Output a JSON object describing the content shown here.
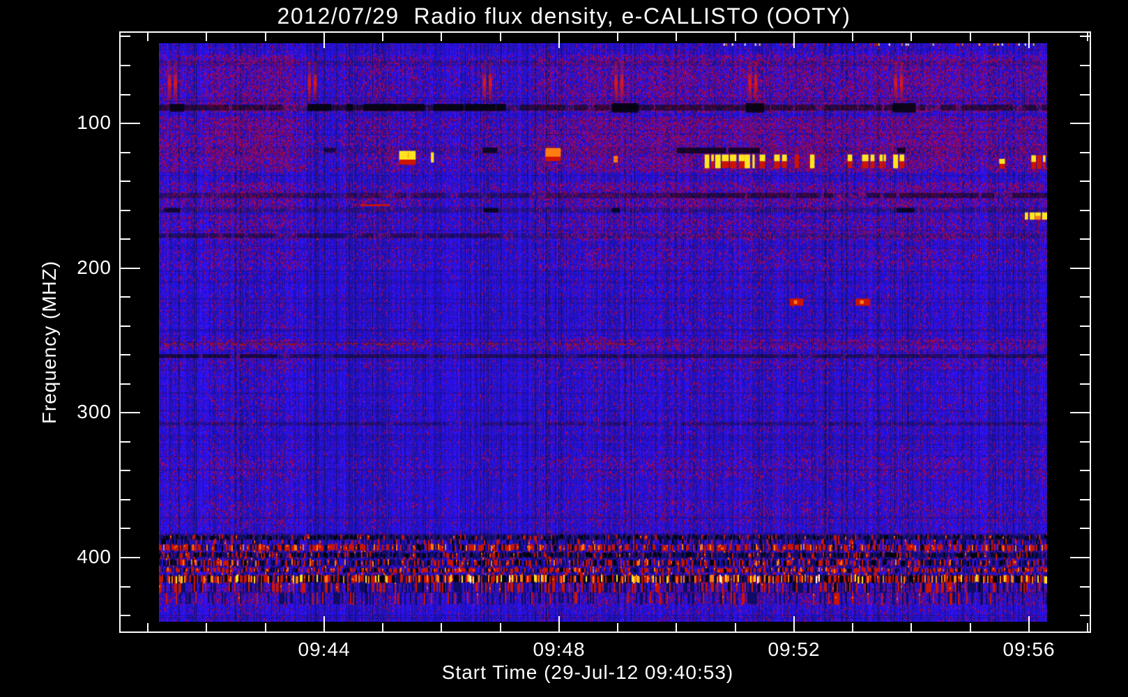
{
  "page": {
    "background": "#000000",
    "text_color": "#ffffff"
  },
  "chart_data": {
    "type": "heatmap",
    "title": "2012/07/29  Radio flux density, e-CALLISTO (OOTY)",
    "xlabel": "Start Time (29-Jul-12 09:40:53)",
    "ylabel": "Frequency (MHZ)",
    "x_axis": {
      "unit": "minutes after 09:00 UT",
      "image_range_min": [
        41.19,
        56.31
      ],
      "frame_range_min": [
        40.47,
        57.05
      ],
      "major_ticks": [
        {
          "value": 44,
          "label": "09:44"
        },
        {
          "value": 48,
          "label": "09:48"
        },
        {
          "value": 52,
          "label": "09:52"
        },
        {
          "value": 56,
          "label": "09:56"
        }
      ],
      "minor_tick_step": 1
    },
    "y_axis": {
      "unit": "MHz",
      "image_range_mhz": [
        44.6,
        444.3
      ],
      "frame_range_mhz": [
        36.4,
        452.0
      ],
      "major_ticks": [
        {
          "value": 100,
          "label": "100"
        },
        {
          "value": 200,
          "label": "200"
        },
        {
          "value": 300,
          "label": "300"
        },
        {
          "value": 400,
          "label": "400"
        }
      ],
      "minor_tick_step": 20,
      "direction": "increasing-downward"
    },
    "palette": {
      "blue": "#2a22dd",
      "dkblue": "#0e0c66",
      "black": "#02030f",
      "red": "#cc1404",
      "darkred": "#9e1a10",
      "maroon": "#7d1536",
      "orange": "#ff7d12",
      "yellow": "#ffe51e",
      "white": "#ffffff"
    },
    "texture": {
      "base_speckle": 0.022,
      "dark_speck_prob": 0.07,
      "dark_col_prob": 0.06,
      "bright_col_prob": 0.04
    },
    "speckle_bands": [
      {
        "f": [
          52,
          92
        ],
        "d": 0.1
      },
      {
        "f": [
          95,
          133
        ],
        "d": 0.13
      },
      {
        "f": [
          140,
          158
        ],
        "d": 0.1
      },
      {
        "f": [
          163,
          180
        ],
        "d": 0.07
      },
      {
        "f": [
          185,
          200
        ],
        "d": 0.05
      },
      {
        "f": [
          248,
          256
        ],
        "d": 0.09
      },
      {
        "f": [
          262,
          270
        ],
        "d": 0.05
      },
      {
        "f": [
          330,
          345
        ],
        "d": 0.05
      },
      {
        "f": [
          360,
          376
        ],
        "d": 0.04
      },
      {
        "f": [
          418,
          432
        ],
        "d": 0.06
      }
    ],
    "row_shade_bands": [
      {
        "f": [
          56.5,
          58.5
        ],
        "k": 0.75
      },
      {
        "f": [
          87,
          91
        ],
        "k": 0.55
      },
      {
        "f": [
          116.5,
          121
        ],
        "k": 0.8
      },
      {
        "f": [
          148,
          151.5
        ],
        "k": 0.7
      },
      {
        "f": [
          158.5,
          161.5
        ],
        "k": 0.7
      },
      {
        "f": [
          176,
          179
        ],
        "k": 0.75
      },
      {
        "f": [
          259,
          262
        ],
        "k": 0.65
      },
      {
        "f": [
          306,
          309
        ],
        "k": 0.8
      },
      {
        "f": [
          384,
          387.5
        ],
        "k": 0.6
      },
      {
        "f": [
          396.5,
          400
        ],
        "k": 0.65
      },
      {
        "f": [
          412,
          417
        ],
        "k": 0.6
      }
    ],
    "dark_lines": [
      {
        "f": [
          87,
          91
        ],
        "t": [
          41.19,
          56.31
        ],
        "a": 0.45
      },
      {
        "f": [
          86.5,
          91.5
        ],
        "t": [
          43.72,
          47.1
        ],
        "a": 0.8
      },
      {
        "f": [
          86.5,
          92
        ],
        "t": [
          41.3,
          41.62
        ],
        "a": 0.8
      },
      {
        "f": [
          86,
          92.5
        ],
        "t": [
          48.9,
          49.35
        ],
        "a": 0.85
      },
      {
        "f": [
          86,
          92.5
        ],
        "t": [
          51.18,
          51.55
        ],
        "a": 0.85
      },
      {
        "f": [
          86,
          92.5
        ],
        "t": [
          53.68,
          54.1
        ],
        "a": 0.85
      },
      {
        "f": [
          116.8,
          120.5
        ],
        "t": [
          46.7,
          46.95
        ],
        "a": 0.8
      },
      {
        "f": [
          116.8,
          120.7
        ],
        "t": [
          49.85,
          51.42
        ],
        "a": 0.75
      },
      {
        "f": [
          116.8,
          120.5
        ],
        "t": [
          53.62,
          53.9
        ],
        "a": 0.8
      },
      {
        "f": [
          117,
          120
        ],
        "t": [
          44.0,
          44.2
        ],
        "a": 0.6
      },
      {
        "f": [
          148,
          151.5
        ],
        "t": [
          41.19,
          49.9
        ],
        "a": 0.25
      },
      {
        "f": [
          148,
          151.5
        ],
        "t": [
          49.9,
          56.31
        ],
        "a": 0.45
      },
      {
        "f": [
          158.5,
          161.5
        ],
        "t": [
          41.28,
          41.55
        ],
        "a": 0.7
      },
      {
        "f": [
          158.5,
          161.5
        ],
        "t": [
          46.72,
          47.02
        ],
        "a": 0.8
      },
      {
        "f": [
          158.5,
          161.5
        ],
        "t": [
          48.9,
          49.18
        ],
        "a": 0.8
      },
      {
        "f": [
          158.5,
          161.5
        ],
        "t": [
          53.75,
          54.05
        ],
        "a": 0.8
      },
      {
        "f": [
          176,
          179
        ],
        "t": [
          41.19,
          47.0
        ],
        "a": 0.35
      },
      {
        "f": [
          259.5,
          262
        ],
        "t": [
          41.19,
          43.2
        ],
        "a": 0.55
      },
      {
        "f": [
          259.5,
          262
        ],
        "t": [
          43.2,
          56.31
        ],
        "a": 0.3
      },
      {
        "f": [
          306.5,
          308.5
        ],
        "t": [
          41.19,
          56.31
        ],
        "a": 0.22
      }
    ],
    "bright_features": [
      {
        "kind": "patch",
        "f": [
          119,
          126
        ],
        "t": [
          45.28,
          45.56
        ],
        "color": "yellow",
        "under": {
          "f": [
            125,
            128.5
          ],
          "color": "red"
        }
      },
      {
        "kind": "dash",
        "f": [
          120,
          127
        ],
        "t": [
          45.82,
          45.87
        ],
        "color": "yellow"
      },
      {
        "kind": "patch",
        "f": [
          117,
          123.5
        ],
        "t": [
          47.77,
          48.03
        ],
        "color": "orange",
        "under": {
          "f": [
            123,
            126
          ],
          "color": "red"
        }
      },
      {
        "kind": "dash",
        "f": [
          122.5,
          127
        ],
        "t": [
          48.93,
          49.0
        ],
        "color": "orange"
      },
      {
        "kind": "dashes",
        "f": [
          121.5,
          131
        ],
        "t": [
          50.48,
          53.92
        ],
        "density": 0.55,
        "topColor": "yellow",
        "bottomColor": "red"
      },
      {
        "kind": "dashes",
        "f": [
          124.5,
          131.5
        ],
        "t": [
          55.15,
          55.5
        ],
        "density": 0.6,
        "topColor": "yellow",
        "bottomColor": "red"
      },
      {
        "kind": "dashes",
        "f": [
          122,
          131.5
        ],
        "t": [
          55.8,
          56.31
        ],
        "density": 0.7,
        "topColor": "yellow",
        "bottomColor": "red"
      },
      {
        "kind": "line",
        "f": [
          155.8,
          157.2
        ],
        "t": [
          44.62,
          45.12
        ],
        "color": "red"
      },
      {
        "kind": "dashes",
        "f": [
          161.5,
          166.5
        ],
        "t": [
          55.93,
          56.31
        ],
        "density": 0.78,
        "topColor": "yellow",
        "bottomColor": "orange"
      },
      {
        "kind": "speckleline",
        "f": [
          251.5,
          254.5
        ],
        "t": [
          41.25,
          49.3
        ],
        "density": 0.5,
        "color": "darkred"
      }
    ],
    "burst_pairs": {
      "times_min": [
        41.42,
        43.8,
        46.78,
        49.02,
        51.3,
        53.78
      ],
      "f": [
        66,
        84.5
      ],
      "faint_f": [
        57,
        66
      ],
      "stripe_width_min": 0.055,
      "pair_gap_min": 0.1
    },
    "red_dots": [
      {
        "f": [
          221,
          226
        ],
        "t": [
          51.93,
          52.16
        ]
      },
      {
        "f": [
          221,
          226
        ],
        "t": [
          53.05,
          53.3
        ]
      }
    ],
    "rfi_bands": [
      {
        "f": [
          384.5,
          387.5
        ],
        "palette": {
          "black": 0.3,
          "red": 0.12,
          "dkblue": 0.4
        }
      },
      {
        "f": [
          387.5,
          391.0
        ],
        "palette": {
          "black": 0.1,
          "red": 0.1,
          "dkblue": 0.25
        }
      },
      {
        "f": [
          391.0,
          395.2
        ],
        "palette": {
          "black": 0.08,
          "red": 0.45,
          "orange": 0.06,
          "dkblue": 0.16
        }
      },
      {
        "f": [
          395.2,
          396.6
        ],
        "palette": {
          "dkblue": 0.2,
          "red": 0.1
        }
      },
      {
        "f": [
          396.6,
          400.0
        ],
        "palette": {
          "black": 0.3,
          "red": 0.16,
          "dkblue": 0.34
        }
      },
      {
        "f": [
          400.0,
          401.6
        ],
        "palette": {
          "dkblue": 0.2,
          "red": 0.15
        }
      },
      {
        "f": [
          401.6,
          405.6
        ],
        "palette": {
          "black": 0.18,
          "red": 0.28,
          "dkblue": 0.28,
          "orange": 0.04
        }
      },
      {
        "f": [
          405.6,
          407.2
        ],
        "palette": {
          "dkblue": 0.18,
          "red": 0.12
        }
      },
      {
        "f": [
          407.2,
          410.2
        ],
        "palette": {
          "red": 0.38,
          "black": 0.12,
          "dkblue": 0.2,
          "orange": 0.04
        }
      },
      {
        "f": [
          410.2,
          412.3
        ],
        "palette": {
          "dkblue": 0.25,
          "red": 0.15
        }
      },
      {
        "f": [
          412.3,
          417.3
        ],
        "palette": {
          "black": 0.28,
          "red": 0.3,
          "orange": 0.14,
          "yellow": 0.07,
          "white": 0.01,
          "dkblue": 0.12
        }
      },
      {
        "f": [
          417.3,
          424.0
        ],
        "palette": {
          "dkblue": 0.25,
          "red": 0.18,
          "black": 0.02
        }
      },
      {
        "f": [
          424.0,
          432.0
        ],
        "palette": {
          "dkblue": 0.2,
          "red": 0.1
        }
      }
    ],
    "top_edge_speckles": {
      "f": [
        44.8,
        46.3
      ],
      "t": [
        50.8,
        56.2
      ],
      "density": 0.3,
      "colors": [
        "red",
        "yellow",
        "orange",
        "white",
        "blue"
      ]
    }
  }
}
